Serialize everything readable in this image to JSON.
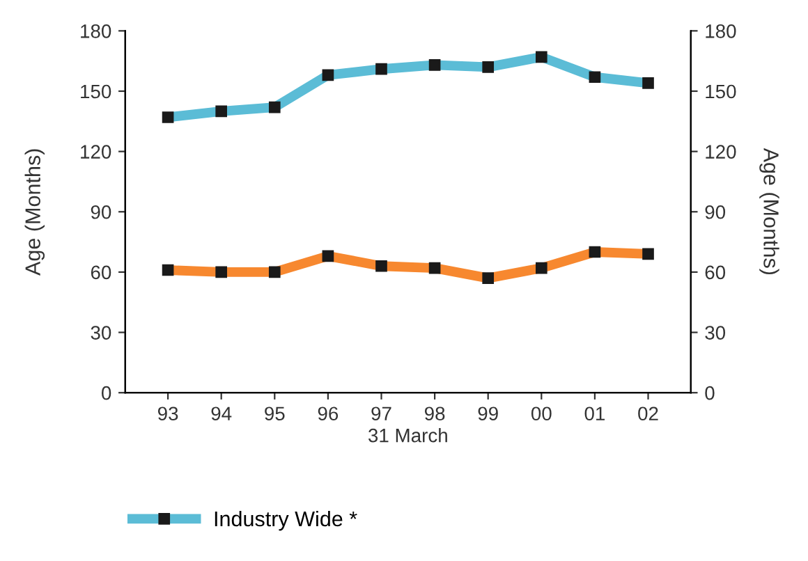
{
  "chart_data": {
    "type": "line",
    "xlabel": "31 March",
    "ylabel": "Age (Months)",
    "y2label": "Age (Months)",
    "categories": [
      "93",
      "94",
      "95",
      "96",
      "97",
      "98",
      "99",
      "00",
      "01",
      "02"
    ],
    "series": [
      {
        "name": "Industry Wide *",
        "color": "#5bbcd6",
        "values": [
          137,
          140,
          142,
          158,
          161,
          163,
          162,
          167,
          157,
          154
        ]
      },
      {
        "color": "#f7882f",
        "values": [
          61,
          60,
          60,
          68,
          63,
          62,
          57,
          62,
          70,
          69
        ]
      }
    ],
    "ylim": [
      0,
      180
    ],
    "yticks": [
      0,
      30,
      60,
      90,
      120,
      150,
      180
    ],
    "y2lim": [
      0,
      180
    ],
    "y2ticks": [
      0,
      30,
      60,
      90,
      120,
      150,
      180
    ],
    "marker": "square",
    "line_style": "solid",
    "grid": false,
    "legend": "bottom left"
  }
}
